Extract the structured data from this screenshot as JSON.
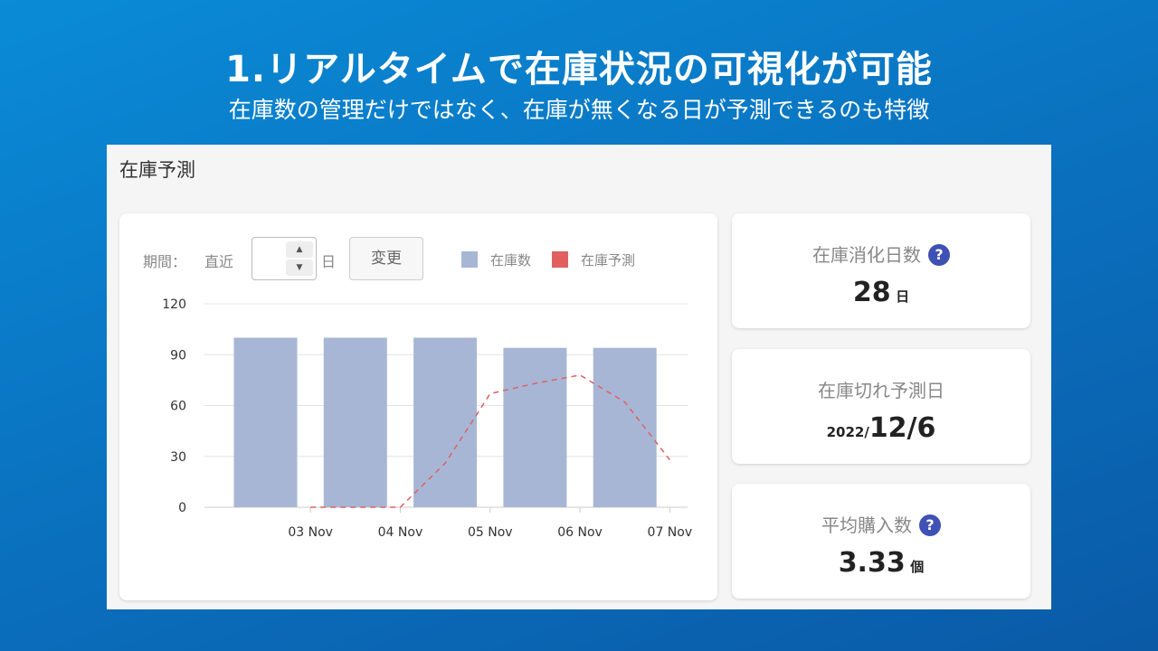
{
  "header": {
    "title": "1.リアルタイムで在庫状況の可視化が可能",
    "subtitle": "在庫数の管理だけではなく、在庫が無くなる日が予測できるのも特徴"
  },
  "panel": {
    "title": "在庫予測"
  },
  "controls": {
    "period_label": "期間：",
    "recent_label": "直近",
    "days_value": "",
    "day_unit": "日",
    "change_button": "変更",
    "up_icon": "triangle-up-icon",
    "down_icon": "triangle-down-icon"
  },
  "legend": [
    {
      "label": "在庫数",
      "color": "#a8b6d6"
    },
    {
      "label": "在庫予測",
      "color": "#e06060"
    }
  ],
  "chart_data": {
    "type": "bar",
    "categories": [
      "03 Nov",
      "04 Nov",
      "05 Nov",
      "06 Nov",
      "07 Nov"
    ],
    "ylim": [
      0,
      120
    ],
    "yticks": [
      "120",
      "90",
      "60",
      "30",
      "0"
    ],
    "series": [
      {
        "name": "在庫数",
        "type": "bar",
        "color": "#a8b6d6",
        "values": [
          100,
          100,
          100,
          94,
          94
        ]
      },
      {
        "name": "在庫予測",
        "type": "line",
        "style": "dashed",
        "color": "#e06060",
        "x": [
          2.5,
          3.0,
          3.5,
          4.0,
          4.5,
          5.0,
          5.5,
          6.0,
          6.5
        ],
        "values": [
          0,
          0,
          0,
          26,
          67,
          73,
          78,
          62,
          28
        ]
      }
    ]
  },
  "stats": [
    {
      "label": "在庫消化日数",
      "help": true,
      "value": "28",
      "unit": "日"
    },
    {
      "label": "在庫切れ予測日",
      "help": false,
      "prefix": "2022/",
      "value": "12/6"
    },
    {
      "label": "平均購入数",
      "help": true,
      "value": "3.33",
      "unit": "個"
    }
  ],
  "help_symbol": "?"
}
